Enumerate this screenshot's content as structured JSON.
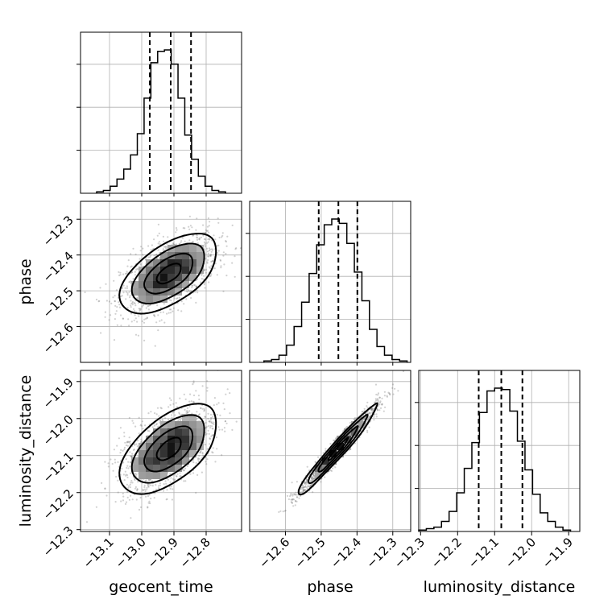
{
  "chart_data": {
    "type": "corner",
    "parameters": [
      "geocent_time",
      "phase",
      "luminosity_distance"
    ],
    "ranges": {
      "geocent_time": [
        -13.19,
        -12.69
      ],
      "phase": [
        -12.7,
        -12.25
      ],
      "luminosity_distance": [
        -12.305,
        -11.87
      ]
    },
    "ticks": {
      "geocent_time": [
        -13.1,
        -13.0,
        -12.9,
        -12.8
      ],
      "phase": [
        -12.6,
        -12.5,
        -12.4,
        -12.3
      ],
      "luminosity_distance": [
        -12.3,
        -12.2,
        -12.1,
        -12.0,
        -11.9
      ]
    },
    "tick_labels": {
      "geocent_time": [
        "−13.1",
        "−13.0",
        "−12.9",
        "−12.8"
      ],
      "phase": [
        "−12.6",
        "−12.5",
        "−12.4",
        "−12.3"
      ],
      "luminosity_distance": [
        "−12.3",
        "−12.2",
        "−12.1",
        "−12.0",
        "−11.9"
      ]
    },
    "histograms": [
      {
        "parameter": "geocent_time",
        "bin_range": [
          -13.14,
          -12.74
        ],
        "counts": [
          1,
          2,
          5,
          10,
          17,
          27,
          42,
          67,
          92,
          100,
          101,
          91,
          67,
          41,
          24,
          12,
          5,
          2,
          1
        ],
        "quantiles": [
          -12.975,
          -12.91,
          -12.847
        ]
      },
      {
        "parameter": "phase",
        "bin_range": [
          -12.66,
          -12.26
        ],
        "counts": [
          1,
          2,
          5,
          12,
          25,
          42,
          62,
          82,
          96,
          100,
          97,
          83,
          63,
          43,
          23,
          11,
          5,
          2,
          1
        ],
        "quantiles": [
          -12.507,
          -12.452,
          -12.399
        ]
      },
      {
        "parameter": "luminosity_distance",
        "bin_range": [
          -12.305,
          -11.895
        ],
        "counts": [
          1,
          2,
          3,
          7,
          14,
          27,
          44,
          62,
          83,
          98,
          100,
          99,
          84,
          63,
          43,
          26,
          13,
          7,
          3,
          1
        ],
        "quantiles": [
          -12.143,
          -12.082,
          -12.025
        ]
      }
    ],
    "joint": [
      {
        "x": "geocent_time",
        "y": "phase",
        "mean": [
          -12.915,
          -12.452
        ],
        "sd": [
          0.075,
          0.055
        ],
        "rho": 0.55
      },
      {
        "x": "geocent_time",
        "y": "luminosity_distance",
        "mean": [
          -12.915,
          -12.082
        ],
        "sd": [
          0.075,
          0.06
        ],
        "rho": 0.55
      },
      {
        "x": "phase",
        "y": "luminosity_distance",
        "mean": [
          -12.452,
          -12.082
        ],
        "sd": [
          0.055,
          0.06
        ],
        "rho": 0.97
      }
    ],
    "grid": true
  }
}
